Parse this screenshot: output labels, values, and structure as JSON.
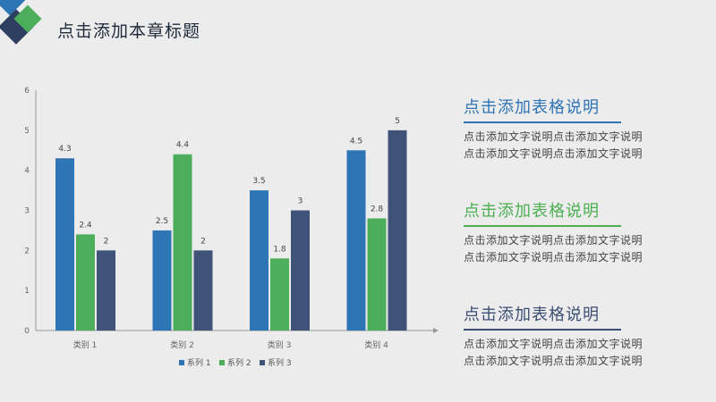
{
  "header": {
    "title": "点击添加本章标题"
  },
  "colors": {
    "series1": "#2e75b6",
    "series2": "#4cae5a",
    "series3": "#3f5277"
  },
  "descriptions": [
    {
      "title": "点击添加表格说明",
      "lines": [
        "点击添加文字说明点击添加文字说明",
        "点击添加文字说明点击添加文字说明"
      ]
    },
    {
      "title": "点击添加表格说明",
      "lines": [
        "点击添加文字说明点击添加文字说明",
        "点击添加文字说明点击添加文字说明"
      ]
    },
    {
      "title": "点击添加表格说明",
      "lines": [
        "点击添加文字说明点击添加文字说明",
        "点击添加文字说明点击添加文字说明"
      ]
    }
  ],
  "chart_data": {
    "type": "bar",
    "categories": [
      "类别 1",
      "类别 2",
      "类别 3",
      "类别 4"
    ],
    "series": [
      {
        "name": "系列 1",
        "values": [
          4.3,
          2.5,
          3.5,
          4.5
        ]
      },
      {
        "name": "系列 2",
        "values": [
          2.4,
          4.4,
          1.8,
          2.8
        ]
      },
      {
        "name": "系列 3",
        "values": [
          2,
          2,
          3,
          5
        ]
      }
    ],
    "ylim": [
      0,
      6
    ],
    "yticks": [
      0,
      1,
      2,
      3,
      4,
      5,
      6
    ],
    "legend": "bottom",
    "grid": false
  }
}
